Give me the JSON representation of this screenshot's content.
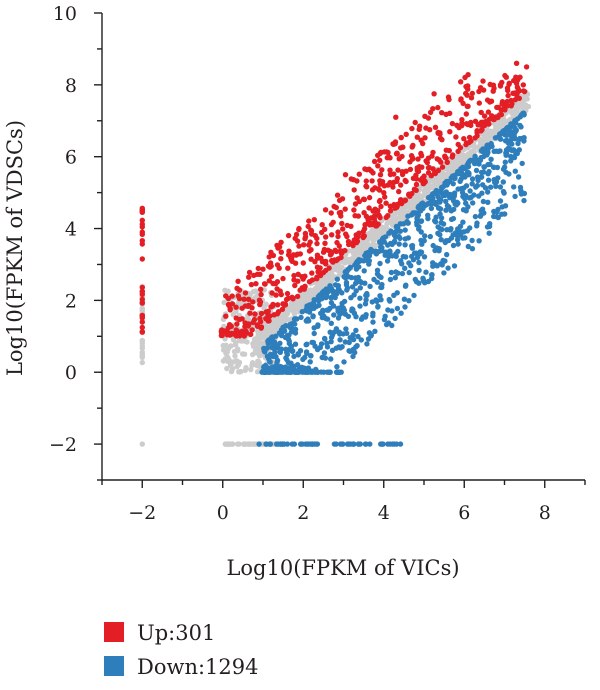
{
  "chart_data": {
    "type": "scatter",
    "title": "",
    "xlabel": "Log10(FPKM of VICs)",
    "ylabel": "Log10(FPKM of VDSCs)",
    "xlim": [
      -3,
      9
    ],
    "ylim": [
      -3,
      10
    ],
    "xticks": [
      -2,
      0,
      2,
      4,
      6,
      8
    ],
    "yticks": [
      -2,
      0,
      2,
      4,
      6,
      8,
      10
    ],
    "xtick_labels": [
      "−2",
      "0",
      "2",
      "4",
      "6",
      "8"
    ],
    "ytick_labels": [
      "−2",
      "0",
      "2",
      "4",
      "6",
      "8",
      "10"
    ],
    "grid": false,
    "legend_position": "bottom-left",
    "series": [
      {
        "name": "Up:301",
        "color": "#e31e24",
        "description_regions": [
          {
            "kind": "column",
            "x": -2,
            "y_range": [
              1.1,
              4.6
            ]
          },
          {
            "kind": "band",
            "x_range": [
              -0.05,
              7.5
            ],
            "offset_range": [
              0.25,
              2.2
            ],
            "y_min": 1.0
          },
          {
            "kind": "outliers",
            "points": [
              [
                3.05,
                5.5
              ],
              [
                3.9,
                5.9
              ],
              [
                4.3,
                7.1
              ],
              [
                5.25,
                7.75
              ],
              [
                6.9,
                8.0
              ],
              [
                7.3,
                8.6
              ],
              [
                7.55,
                8.5
              ],
              [
                2.7,
                3.3
              ],
              [
                2.3,
                3.8
              ]
            ]
          }
        ]
      },
      {
        "name": "Down:1294",
        "color": "#2e7ebc",
        "description_regions": [
          {
            "kind": "bottom-row",
            "y": 0,
            "x_range": [
              0.95,
              3.0
            ]
          },
          {
            "kind": "bottom-row",
            "y": -2,
            "x_range": [
              0.9,
              4.5
            ]
          },
          {
            "kind": "band",
            "x_range": [
              1.0,
              7.5
            ],
            "offset_range": [
              -2.8,
              -0.25
            ],
            "y_min": 0.0
          },
          {
            "kind": "outliers",
            "points": [
              [
                5.6,
                2.9
              ],
              [
                6.1,
                3.5
              ],
              [
                6.8,
                5.3
              ],
              [
                7.15,
                6.2
              ],
              [
                4.2,
                1.3
              ]
            ]
          }
        ]
      },
      {
        "name": "",
        "color": "#cccccc",
        "description_regions": [
          {
            "kind": "column",
            "x": -2,
            "y_range": [
              0,
              2.4
            ]
          },
          {
            "kind": "point",
            "x": -2,
            "y": -2
          },
          {
            "kind": "block",
            "x_range": [
              0,
              1.3
            ],
            "y_range": [
              0,
              2.3
            ]
          },
          {
            "kind": "diagonal",
            "x_range": [
              0.8,
              7.6
            ],
            "offset_range": [
              -0.3,
              0.3
            ]
          },
          {
            "kind": "bottom-row",
            "y": -2,
            "x_range": [
              0,
              1.5
            ]
          }
        ]
      }
    ]
  },
  "legend": {
    "items": [
      {
        "label": "Up:301",
        "color": "#e31e24"
      },
      {
        "label": "Down:1294",
        "color": "#2e7ebc"
      }
    ]
  }
}
